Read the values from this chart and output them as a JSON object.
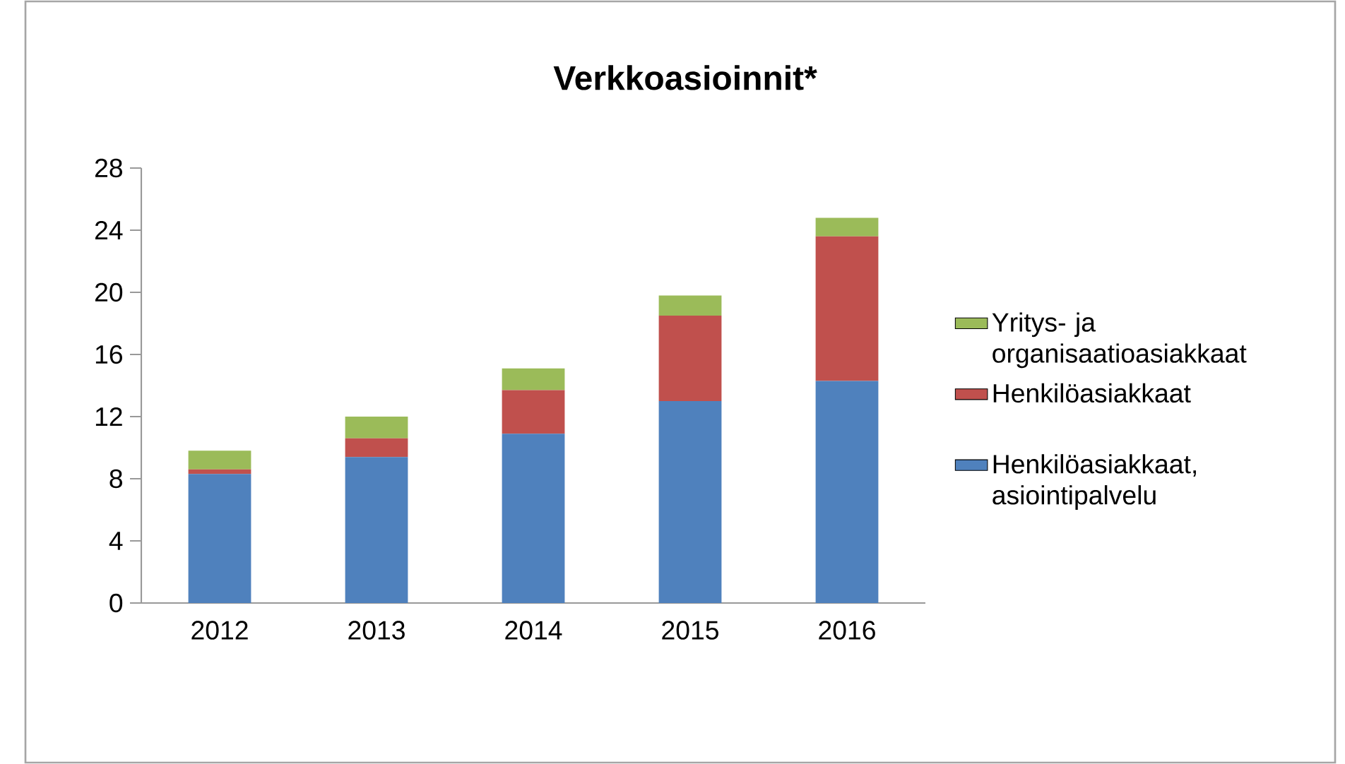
{
  "chart_data": {
    "type": "bar",
    "title": "Verkkoasioinnit*",
    "stacked": true,
    "categories": [
      "2012",
      "2013",
      "2014",
      "2015",
      "2016"
    ],
    "series": [
      {
        "name": "Henkilöasiakkaat, asiointipalvelu",
        "color": "#4f81bd",
        "values": [
          8.3,
          9.4,
          10.9,
          13.0,
          14.3
        ]
      },
      {
        "name": "Henkilöasiakkaat",
        "color": "#c0504d",
        "values": [
          0.3,
          1.2,
          2.8,
          5.5,
          9.3
        ]
      },
      {
        "name": "Yritys- ja organisaatioasiakkaat",
        "color": "#9bbb59",
        "values": [
          1.2,
          1.4,
          1.4,
          1.3,
          1.2
        ]
      }
    ],
    "ylim": [
      0,
      28
    ],
    "yticks": [
      0,
      4,
      8,
      12,
      16,
      20,
      24,
      28
    ],
    "grid": false,
    "legend": "right"
  }
}
